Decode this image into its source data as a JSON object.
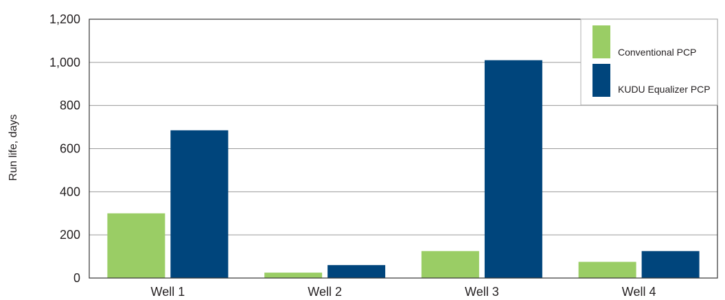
{
  "chart_data": {
    "type": "bar",
    "title": "",
    "xlabel": "",
    "ylabel": "Run life, days",
    "categories": [
      "Well 1",
      "Well 2",
      "Well 3",
      "Well 4"
    ],
    "ylim": [
      0,
      1200
    ],
    "yticks": [
      "0",
      "200",
      "400",
      "600",
      "800",
      "1,000",
      "1,200"
    ],
    "ytick_values": [
      0,
      200,
      400,
      600,
      800,
      1000,
      1200
    ],
    "grid": true,
    "legend_position": "top-right",
    "series": [
      {
        "name": "Conventional PCP",
        "color": "#9acd65",
        "values": [
          300,
          25,
          125,
          75
        ]
      },
      {
        "name": "KUDU Equalizer PCP",
        "color": "#00457c",
        "values": [
          685,
          60,
          1010,
          125
        ]
      }
    ]
  }
}
